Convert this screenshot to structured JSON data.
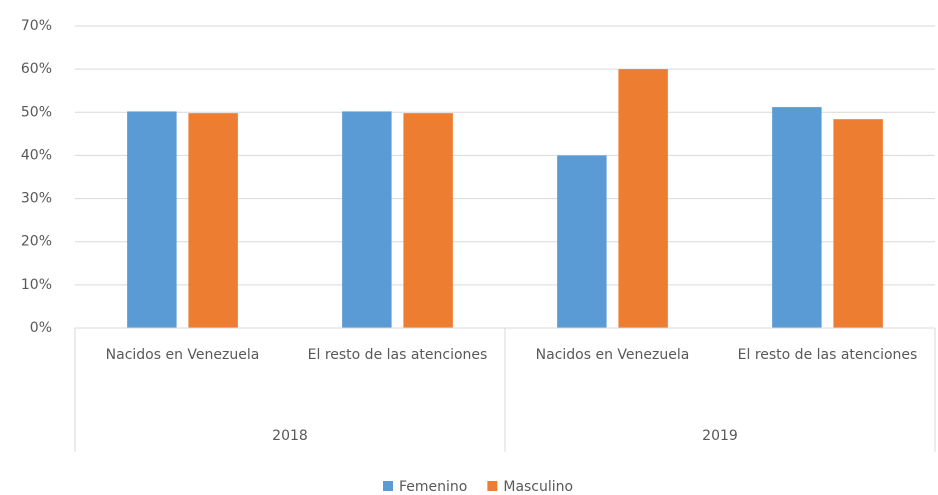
{
  "chart_data": {
    "type": "bar",
    "categories": [
      "Nacidos en Venezuela",
      "El resto de las atenciones",
      "Nacidos en Venezuela",
      "El resto de las atenciones"
    ],
    "category_groups": [
      "2018",
      "2019"
    ],
    "series": [
      {
        "name": "Femenino",
        "color": "#5b9bd5",
        "values": [
          50.2,
          50.2,
          40,
          51.2
        ]
      },
      {
        "name": "Masculino",
        "color": "#ed7d31",
        "values": [
          49.8,
          49.8,
          60,
          48.4
        ]
      }
    ],
    "ylim": [
      0,
      70
    ],
    "yticks": [
      {
        "value": 0,
        "label": "0%"
      },
      {
        "value": 10,
        "label": "10%"
      },
      {
        "value": 20,
        "label": "20%"
      },
      {
        "value": 30,
        "label": "30%"
      },
      {
        "value": 40,
        "label": "40%"
      },
      {
        "value": 50,
        "label": "50%"
      },
      {
        "value": 60,
        "label": "60%"
      },
      {
        "value": 70,
        "label": "70%"
      }
    ],
    "grid": true,
    "legend": "bottom"
  }
}
